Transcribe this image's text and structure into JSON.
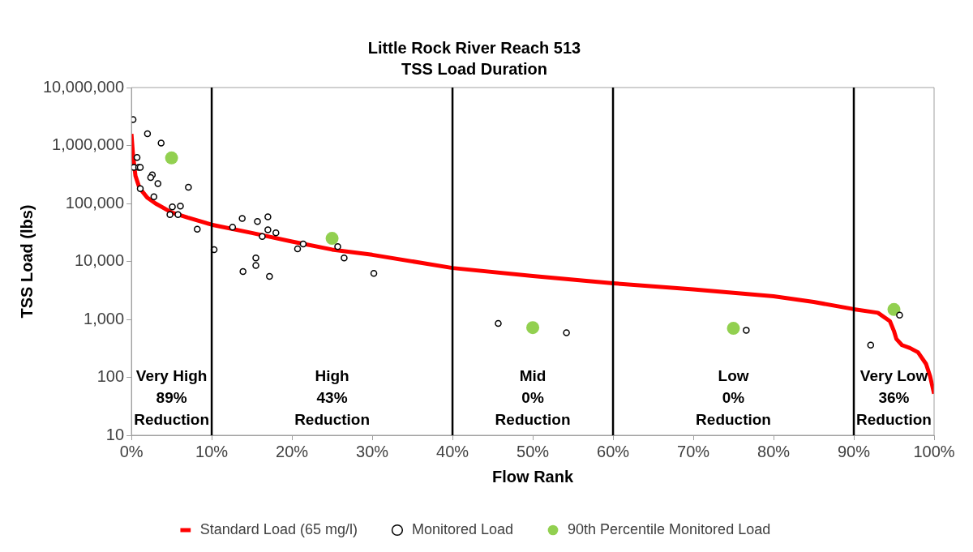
{
  "chart_data": {
    "type": "scatter",
    "title": "Little Rock River Reach 513",
    "subtitle": "TSS Load Duration",
    "xlabel": "Flow Rank",
    "ylabel": "TSS Load (lbs)",
    "log": "y",
    "grid": false,
    "legend": "bottom",
    "marker": "circle",
    "xlim": [
      0,
      100
    ],
    "xticks": [
      {
        "value": 0,
        "label": "0%"
      },
      {
        "value": 10,
        "label": "10%"
      },
      {
        "value": 20,
        "label": "20%"
      },
      {
        "value": 30,
        "label": "30%"
      },
      {
        "value": 40,
        "label": "40%"
      },
      {
        "value": 50,
        "label": "50%"
      },
      {
        "value": 60,
        "label": "60%"
      },
      {
        "value": 70,
        "label": "70%"
      },
      {
        "value": 80,
        "label": "80%"
      },
      {
        "value": 90,
        "label": "90%"
      },
      {
        "value": 100,
        "label": "100%"
      }
    ],
    "ylim": [
      10,
      10000000
    ],
    "yticks": [
      {
        "value": 10,
        "label": "10"
      },
      {
        "value": 100,
        "label": "100"
      },
      {
        "value": 1000,
        "label": "1,000"
      },
      {
        "value": 10000,
        "label": "10,000"
      },
      {
        "value": 100000,
        "label": "100,000"
      },
      {
        "value": 1000000,
        "label": "1,000,000"
      },
      {
        "value": 10000000,
        "label": "10,000,000"
      }
    ],
    "series": [
      {
        "name": "Standard Load (65 mg/l)",
        "type": "line",
        "color": "#ff0000",
        "line_style": "solid",
        "marker": "none",
        "x": [
          0,
          0.2,
          0.5,
          1,
          2,
          3,
          5,
          7,
          10,
          15,
          20,
          25,
          30,
          40,
          50,
          60,
          70,
          80,
          85,
          90,
          93,
          94.5,
          95,
          95.3,
          96,
          97,
          98,
          99,
          99.5,
          100
        ],
        "values": [
          1580000,
          680000,
          300000,
          185000,
          125000,
          100000,
          70000,
          57000,
          43000,
          31000,
          22000,
          16000,
          13000,
          7700,
          5600,
          4200,
          3300,
          2500,
          2000,
          1500,
          1300,
          930,
          630,
          460,
          360,
          320,
          270,
          170,
          105,
          52
        ]
      },
      {
        "name": "Monitored Load",
        "type": "scatter",
        "color": "#000000",
        "x": [
          0.2,
          2.0,
          3.7,
          0.7,
          0.3,
          0.9,
          1.1,
          2.6,
          2.4,
          3.3,
          1.1,
          7.1,
          2.8,
          5.1,
          6.1,
          4.8,
          5.8,
          8.2,
          10.3,
          12.6,
          13.8,
          15.7,
          17.0,
          17.0,
          18.0,
          16.3,
          20.7,
          21.4,
          25.7,
          26.5,
          30.2,
          15.5,
          15.5,
          13.9,
          17.2,
          45.7,
          54.2,
          76.6,
          95.7,
          92.1
        ],
        "values": [
          2800000,
          1600000,
          1100000,
          620000,
          420000,
          420000,
          420000,
          310000,
          280000,
          220000,
          180000,
          190000,
          130000,
          87000,
          90000,
          64000,
          64000,
          36000,
          16000,
          39000,
          55000,
          49000,
          59000,
          35000,
          31000,
          27000,
          16500,
          20000,
          18000,
          11500,
          6200,
          11500,
          8500,
          6700,
          5500,
          850,
          590,
          650,
          1180,
          360
        ]
      },
      {
        "name": "90th Percentile Monitored Load",
        "type": "scatter",
        "color": "#92d050",
        "x": [
          5,
          25,
          50,
          75,
          95
        ],
        "values": [
          610000,
          25000,
          720,
          700,
          1480
        ]
      }
    ],
    "ref_lines": [
      {
        "axis": "x",
        "value": 10,
        "color": "#000000"
      },
      {
        "axis": "x",
        "value": 40,
        "color": "#000000"
      },
      {
        "axis": "x",
        "value": 60,
        "color": "#000000"
      },
      {
        "axis": "x",
        "value": 90,
        "color": "#000000"
      }
    ],
    "annotations": [
      "Very High\n89%\nReduction",
      "High\n43%\nReduction",
      "Mid\n0%\nReduction",
      "Low\n0%\nReduction",
      "Very Low\n36%\nReduction"
    ]
  }
}
